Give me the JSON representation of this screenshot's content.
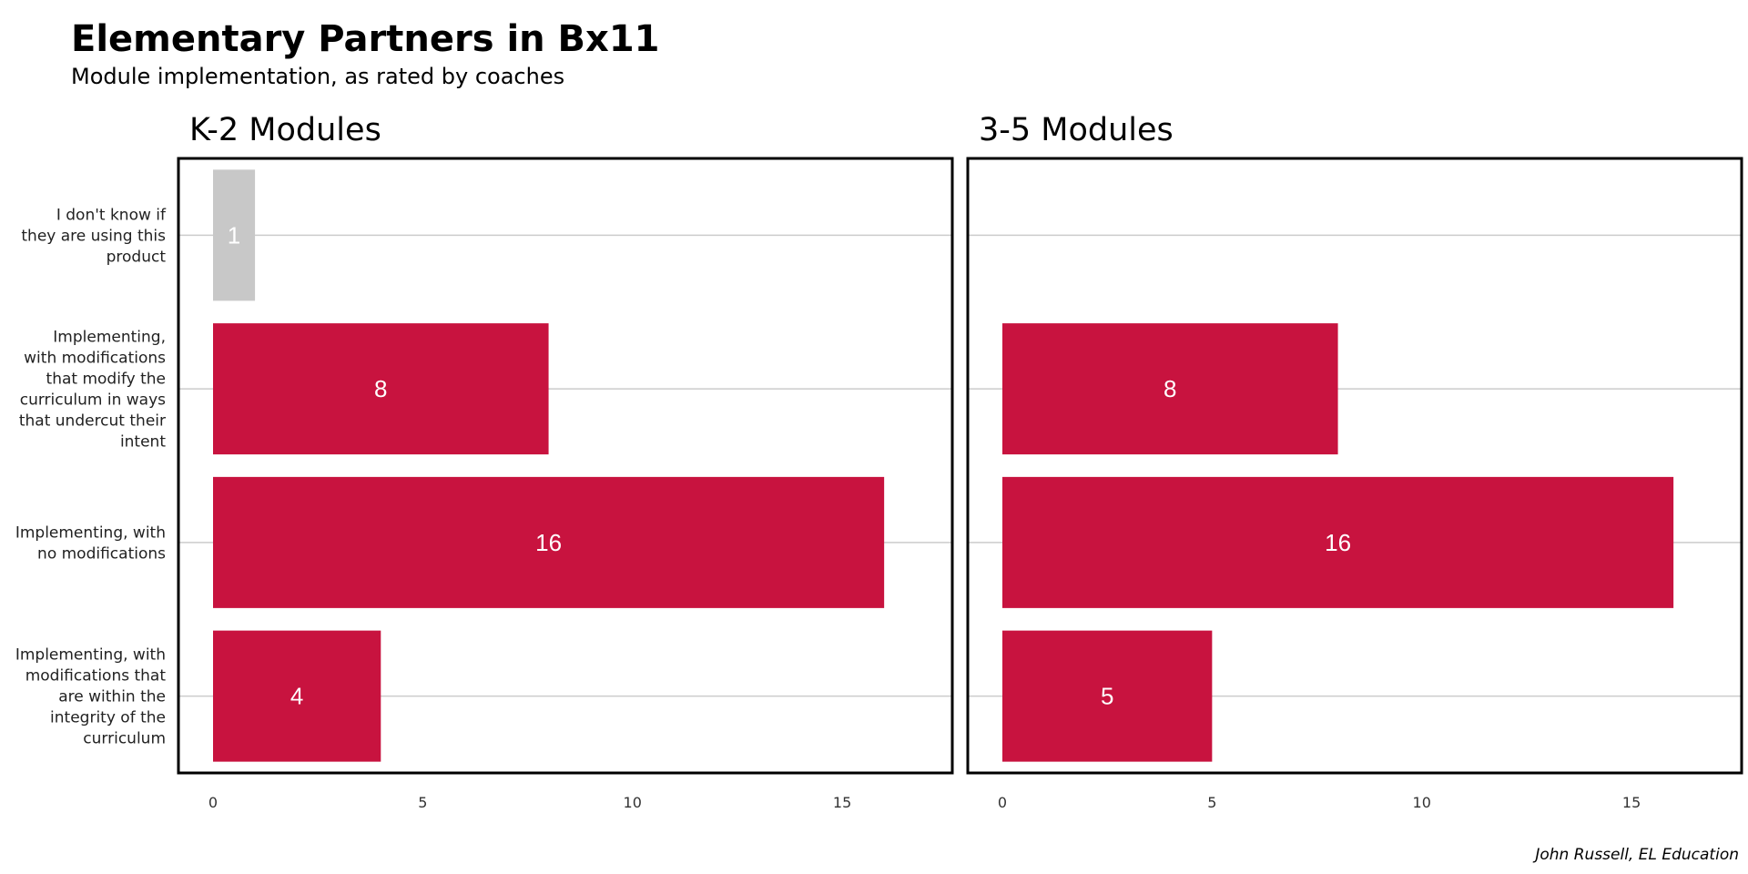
{
  "chart_data": {
    "type": "bar",
    "orientation": "horizontal",
    "title": "Elementary Partners in Bx11",
    "subtitle": "Module implementation, as rated by coaches",
    "caption": "John Russell, EL Education",
    "categories": [
      "I don't know if they are using this product",
      "Implementing, with modifications that modify the curriculum in ways that undercut their intent",
      "Implementing, with no modifications",
      "Implementing, with modifications that are within the integrity of the curriculum"
    ],
    "category_lines": [
      [
        "I don't know if",
        "they are using this",
        "product"
      ],
      [
        "Implementing,",
        "with modifications",
        "that modify the",
        "curriculum in ways",
        "that undercut their",
        "intent"
      ],
      [
        "Implementing, with",
        "no modifications"
      ],
      [
        "Implementing, with",
        "modifications that",
        "are within the",
        "integrity of the",
        "curriculum"
      ]
    ],
    "panels": [
      {
        "title": "K-2 Modules",
        "values": [
          1,
          8,
          16,
          4
        ],
        "labels": [
          "1",
          "8",
          "16",
          "4"
        ]
      },
      {
        "title": "3-5 Modules",
        "values": [
          null,
          8,
          16,
          5
        ],
        "labels": [
          "",
          "8",
          "16",
          "5"
        ]
      }
    ],
    "bar_colors": [
      "#c8c8c8",
      "#c8133f",
      "#c8133f",
      "#c8133f"
    ],
    "xlim": [
      0,
      16.8
    ],
    "xticks": [
      0,
      5,
      10,
      15
    ],
    "xtick_labels": [
      "0",
      "5",
      "10",
      "15"
    ],
    "grid": "horizontal major lines at each category"
  }
}
